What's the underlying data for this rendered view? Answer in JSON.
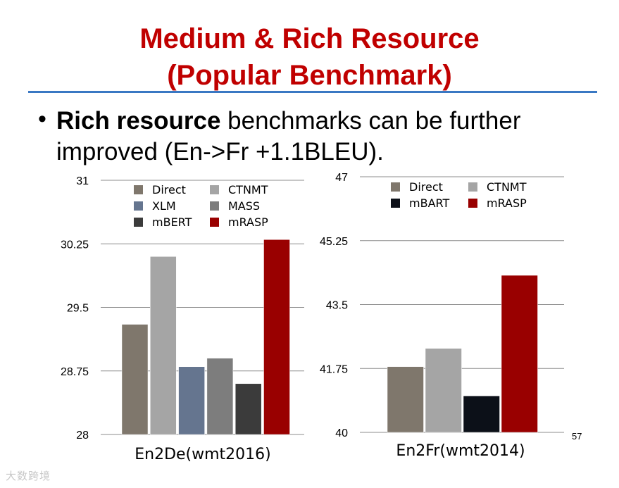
{
  "slide": {
    "title_line1": "Medium & Rich Resource",
    "title_line2": "(Popular Benchmark)",
    "bullet": {
      "marker": "•",
      "bold_text": "Rich resource",
      "text_line1_rest": " benchmarks can be further",
      "text_line2": "improved (En->Fr +1.1BLEU)."
    },
    "page_number": "57",
    "watermark": "大数跨境"
  },
  "chart_data": [
    {
      "type": "bar",
      "title": "",
      "xlabel": "En2De(wmt2016)",
      "ylabel": "",
      "ylim": [
        28,
        31
      ],
      "yticks": [
        28,
        28.75,
        29.5,
        30.25,
        31
      ],
      "ytick_labels": [
        "28",
        "28.75",
        "29.5",
        "30.25",
        "31"
      ],
      "grid": true,
      "legend_placement": "top",
      "series": [
        {
          "name": "Direct",
          "values": [
            29.3
          ],
          "color": "#7f776c"
        },
        {
          "name": "CTNMT",
          "values": [
            30.1
          ],
          "color": "#a5a5a5"
        },
        {
          "name": "XLM",
          "values": [
            28.8
          ],
          "color": "#65758f"
        },
        {
          "name": "MASS",
          "values": [
            28.9
          ],
          "color": "#7d7d7d"
        },
        {
          "name": "mBERT",
          "values": [
            28.6
          ],
          "color": "#3b3b3b"
        },
        {
          "name": "mRASP",
          "values": [
            30.3
          ],
          "color": "#990000"
        }
      ]
    },
    {
      "type": "bar",
      "title": "",
      "xlabel": "En2Fr(wmt2014)",
      "ylabel": "",
      "ylim": [
        40,
        47
      ],
      "yticks": [
        40,
        41.75,
        43.5,
        45.25,
        47
      ],
      "ytick_labels": [
        "40",
        "41.75",
        "43.5",
        "45.25",
        "47"
      ],
      "grid": true,
      "legend_placement": "top",
      "series": [
        {
          "name": "Direct",
          "values": [
            41.8
          ],
          "color": "#7f776c"
        },
        {
          "name": "CTNMT",
          "values": [
            42.3
          ],
          "color": "#a5a5a5"
        },
        {
          "name": "mBART",
          "values": [
            41.0
          ],
          "color": "#0c1018"
        },
        {
          "name": "mRASP",
          "values": [
            44.3
          ],
          "color": "#990000"
        }
      ]
    }
  ]
}
